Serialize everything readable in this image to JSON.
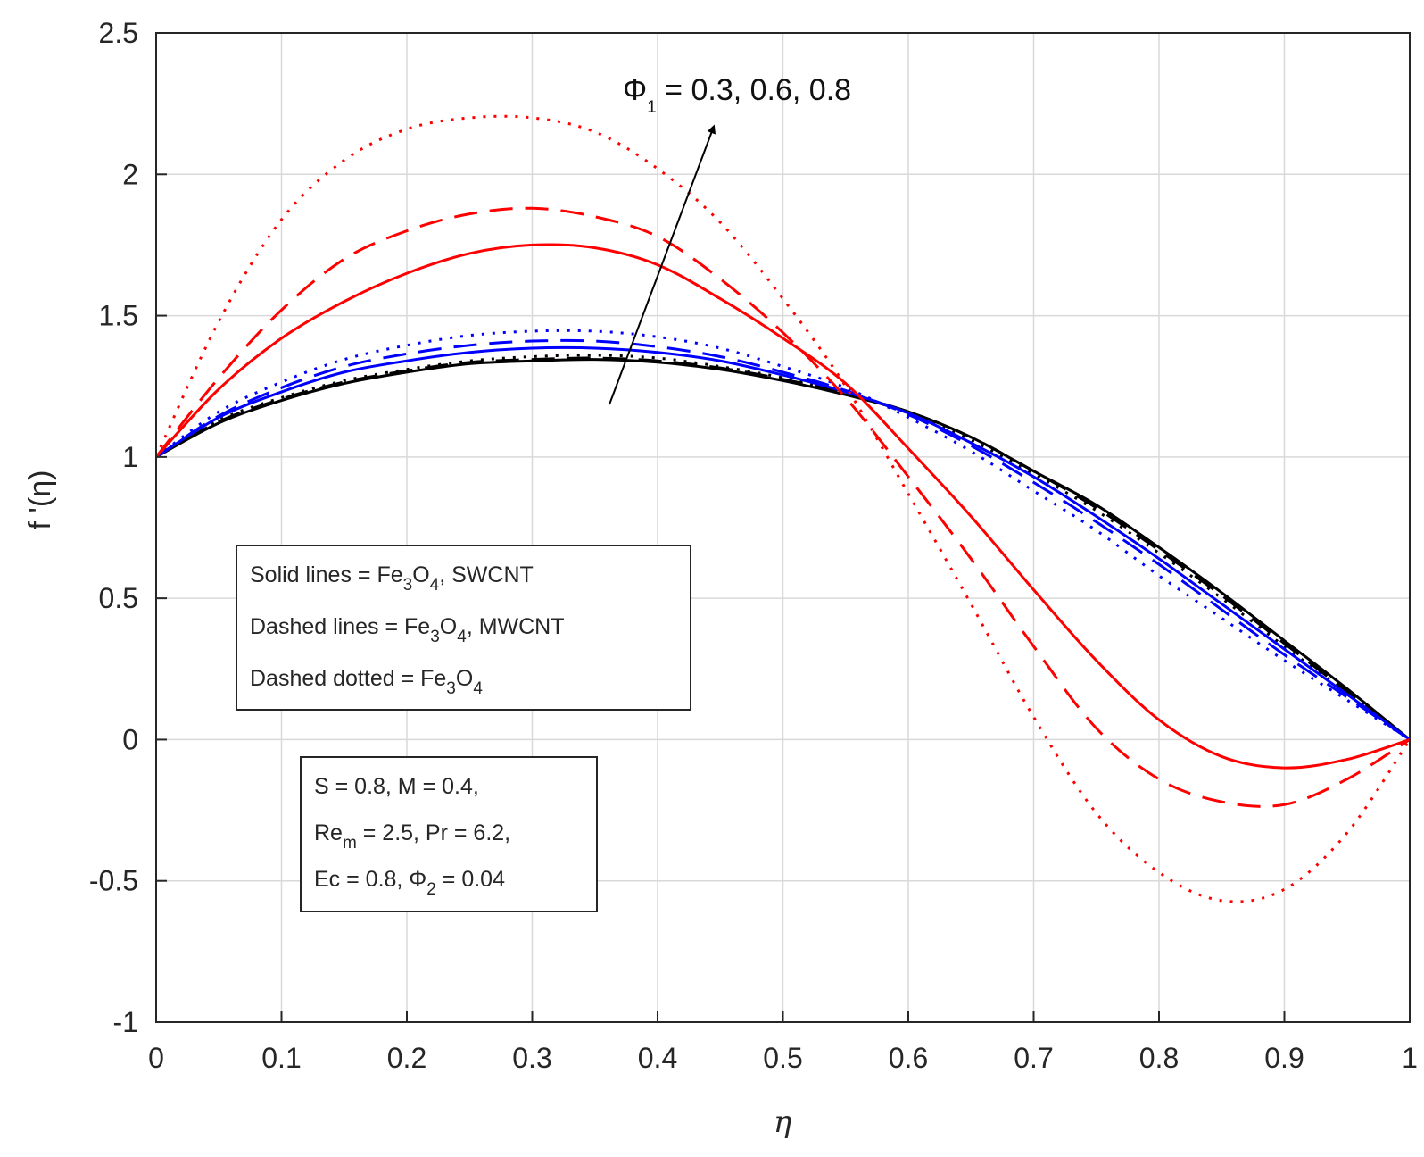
{
  "chart_data": {
    "type": "line",
    "title": "",
    "xlabel": "η",
    "ylabel": "f '(η)",
    "xlim": [
      0,
      1
    ],
    "ylim": [
      -1,
      2.5
    ],
    "xticks": [
      "0",
      "0.1",
      "0.2",
      "0.3",
      "0.4",
      "0.5",
      "0.6",
      "0.7",
      "0.8",
      "0.9",
      "1"
    ],
    "yticks": [
      "-1",
      "-0.5",
      "0",
      "0.5",
      "1",
      "1.5",
      "2",
      "2.5"
    ],
    "grid": true,
    "x": [
      0,
      0.05,
      0.1,
      0.15,
      0.2,
      0.25,
      0.3,
      0.35,
      0.4,
      0.45,
      0.5,
      0.55,
      0.6,
      0.65,
      0.7,
      0.75,
      0.8,
      0.85,
      0.9,
      0.95,
      1.0
    ],
    "series": [
      {
        "name": "Fe3O4, SWCNT (Φ1 = 0.3)",
        "color": "#000000",
        "style": "solid",
        "values": [
          1.0,
          1.12,
          1.2,
          1.26,
          1.3,
          1.33,
          1.34,
          1.345,
          1.335,
          1.31,
          1.27,
          1.22,
          1.16,
          1.07,
          0.95,
          0.83,
          0.68,
          0.52,
          0.35,
          0.18,
          0.0
        ]
      },
      {
        "name": "Fe3O4, MWCNT (Φ1 = 0.3)",
        "color": "#000000",
        "style": "dashed",
        "values": [
          1.0,
          1.125,
          1.205,
          1.265,
          1.305,
          1.335,
          1.345,
          1.35,
          1.34,
          1.315,
          1.275,
          1.225,
          1.16,
          1.07,
          0.95,
          0.82,
          0.67,
          0.51,
          0.34,
          0.17,
          0.0
        ]
      },
      {
        "name": "Fe3O4 (Φ1 = 0.3)",
        "color": "#000000",
        "style": "dotted",
        "values": [
          1.0,
          1.13,
          1.21,
          1.27,
          1.31,
          1.34,
          1.355,
          1.36,
          1.35,
          1.32,
          1.28,
          1.225,
          1.155,
          1.06,
          0.94,
          0.81,
          0.66,
          0.5,
          0.33,
          0.165,
          0.0
        ]
      },
      {
        "name": "Fe3O4, SWCNT (Φ1 = 0.6)",
        "color": "#0000ff",
        "style": "solid",
        "values": [
          1.0,
          1.14,
          1.23,
          1.3,
          1.34,
          1.37,
          1.385,
          1.385,
          1.37,
          1.34,
          1.29,
          1.23,
          1.155,
          1.05,
          0.93,
          0.79,
          0.64,
          0.48,
          0.32,
          0.16,
          0.0
        ]
      },
      {
        "name": "Fe3O4, MWCNT (Φ1 = 0.6)",
        "color": "#0000ff",
        "style": "dashed",
        "values": [
          1.0,
          1.145,
          1.245,
          1.32,
          1.365,
          1.395,
          1.41,
          1.41,
          1.39,
          1.355,
          1.3,
          1.235,
          1.15,
          1.04,
          0.91,
          0.77,
          0.62,
          0.46,
          0.3,
          0.15,
          0.0
        ]
      },
      {
        "name": "Fe3O4 (Φ1 = 0.6)",
        "color": "#0000ff",
        "style": "dotted",
        "values": [
          1.0,
          1.16,
          1.265,
          1.345,
          1.395,
          1.43,
          1.445,
          1.445,
          1.425,
          1.385,
          1.32,
          1.245,
          1.14,
          1.02,
          0.88,
          0.74,
          0.58,
          0.43,
          0.28,
          0.14,
          0.0
        ]
      },
      {
        "name": "Fe3O4, SWCNT (Φ1 = 0.8)",
        "color": "#ff0000",
        "style": "solid",
        "values": [
          1.0,
          1.24,
          1.42,
          1.55,
          1.65,
          1.72,
          1.75,
          1.74,
          1.68,
          1.56,
          1.42,
          1.26,
          1.03,
          0.79,
          0.53,
          0.28,
          0.07,
          -0.06,
          -0.1,
          -0.07,
          0.0
        ]
      },
      {
        "name": "Fe3O4, MWCNT (Φ1 = 0.8)",
        "color": "#ff0000",
        "style": "dashed",
        "values": [
          1.0,
          1.28,
          1.52,
          1.7,
          1.8,
          1.86,
          1.88,
          1.85,
          1.78,
          1.63,
          1.44,
          1.21,
          0.93,
          0.64,
          0.33,
          0.04,
          -0.14,
          -0.22,
          -0.23,
          -0.14,
          0.0
        ]
      },
      {
        "name": "Fe3O4 (Φ1 = 0.8)",
        "color": "#ff0000",
        "style": "dotted",
        "values": [
          1.0,
          1.48,
          1.84,
          2.05,
          2.16,
          2.2,
          2.2,
          2.15,
          2.02,
          1.83,
          1.56,
          1.25,
          0.87,
          0.48,
          0.08,
          -0.26,
          -0.47,
          -0.57,
          -0.53,
          -0.33,
          0.0
        ]
      }
    ],
    "annotation": {
      "label": "Φ",
      "sub": "1",
      "rest": " = 0.3, 0.6, 0.8"
    },
    "legend_box": {
      "line1": {
        "pre": "Solid lines = Fe",
        "s1": "3",
        "mid": "O",
        "s2": "4",
        "post": ", SWCNT"
      },
      "line2": {
        "pre": "Dashed lines = Fe",
        "s1": "3",
        "mid": "O",
        "s2": "4",
        "post": ", MWCNT"
      },
      "line3": {
        "pre": "Dashed dotted = Fe",
        "s1": "3",
        "mid": "O",
        "s2": "4",
        "post": ""
      }
    },
    "params_box": {
      "line1": "S = 0.8, M = 0.4,",
      "line2": {
        "pre": "Re",
        "sub": "m",
        "post": " = 2.5, Pr = 6.2,"
      },
      "line3": {
        "pre": "Ec = 0.8, Φ",
        "sub": "2",
        "post": " = 0.04"
      }
    }
  }
}
